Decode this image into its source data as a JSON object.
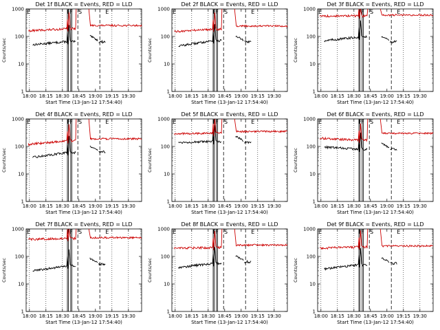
{
  "layout_common": {
    "ylabel": "Counts/sec",
    "xlabel": "Start Time (13-Jan-12 17:54:40)",
    "x_ticks": [
      "18:00",
      "18:15",
      "18:30",
      "18:45",
      "19:00",
      "19:15",
      "19:30"
    ],
    "y_ticks": [
      "1",
      "10",
      "100",
      "1000"
    ],
    "markers": [
      "F",
      "F",
      "S",
      "E"
    ],
    "colors": {
      "events": "#000000",
      "lld": "#cc0000",
      "axes": "#000000"
    }
  },
  "chart_data": [
    {
      "type": "line",
      "title": "Det 1f BLACK = Events, RED = LLD",
      "yscale": "log",
      "ylim": [
        1,
        1000
      ],
      "xlim_min": [
        0,
        105
      ],
      "series": [
        {
          "name": "Events",
          "levels": [
            50,
            65,
            80
          ]
        },
        {
          "name": "LLD",
          "levels": [
            160,
            190,
            250
          ]
        }
      ]
    },
    {
      "type": "line",
      "title": "Det 2f BLACK = Events, RED = LLD",
      "yscale": "log",
      "ylim": [
        1,
        1000
      ],
      "xlim_min": [
        0,
        105
      ],
      "series": [
        {
          "name": "Events",
          "levels": [
            45,
            70,
            80
          ]
        },
        {
          "name": "LLD",
          "levels": [
            150,
            185,
            240
          ]
        }
      ]
    },
    {
      "type": "line",
      "title": "Det 3f BLACK = Events, RED = LLD",
      "yscale": "log",
      "ylim": [
        1,
        1000
      ],
      "xlim_min": [
        0,
        105
      ],
      "series": [
        {
          "name": "Events",
          "levels": [
            70,
            95,
            80
          ]
        },
        {
          "name": "LLD",
          "levels": [
            550,
            560,
            600
          ]
        }
      ]
    },
    {
      "type": "line",
      "title": "Det 4f BLACK = Events, RED = LLD",
      "yscale": "log",
      "ylim": [
        1,
        1000
      ],
      "xlim_min": [
        0,
        105
      ],
      "series": [
        {
          "name": "Events",
          "levels": [
            40,
            60,
            80
          ]
        },
        {
          "name": "LLD",
          "levels": [
            120,
            160,
            190
          ]
        }
      ]
    },
    {
      "type": "line",
      "title": "Det 5f BLACK = Events, RED = LLD",
      "yscale": "log",
      "ylim": [
        1,
        1000
      ],
      "xlim_min": [
        0,
        105
      ],
      "series": [
        {
          "name": "Events",
          "levels": [
            140,
            150,
            180
          ]
        },
        {
          "name": "LLD",
          "levels": [
            290,
            300,
            350
          ]
        }
      ]
    },
    {
      "type": "line",
      "title": "Det 6f BLACK = Events, RED = LLD",
      "yscale": "log",
      "ylim": [
        1,
        1000
      ],
      "xlim_min": [
        0,
        105
      ],
      "series": [
        {
          "name": "Events",
          "levels": [
            95,
            80,
            100
          ]
        },
        {
          "name": "LLD",
          "levels": [
            200,
            170,
            300
          ]
        }
      ]
    },
    {
      "type": "line",
      "title": "Det 7f BLACK = Events, RED = LLD",
      "yscale": "log",
      "ylim": [
        1,
        1000
      ],
      "xlim_min": [
        0,
        105
      ],
      "series": [
        {
          "name": "Events",
          "levels": [
            30,
            45,
            65
          ]
        },
        {
          "name": "LLD",
          "levels": [
            420,
            450,
            480
          ]
        }
      ]
    },
    {
      "type": "line",
      "title": "Det 8f BLACK = Events, RED = LLD",
      "yscale": "log",
      "ylim": [
        1,
        1000
      ],
      "xlim_min": [
        0,
        105
      ],
      "series": [
        {
          "name": "Events",
          "levels": [
            40,
            55,
            80
          ]
        },
        {
          "name": "LLD",
          "levels": [
            200,
            210,
            260
          ]
        }
      ]
    },
    {
      "type": "line",
      "title": "Det 9f BLACK = Events, RED = LLD",
      "yscale": "log",
      "ylim": [
        1,
        1000
      ],
      "xlim_min": [
        0,
        105
      ],
      "series": [
        {
          "name": "Events",
          "levels": [
            35,
            50,
            70
          ]
        },
        {
          "name": "LLD",
          "levels": [
            200,
            220,
            240
          ]
        }
      ]
    }
  ]
}
